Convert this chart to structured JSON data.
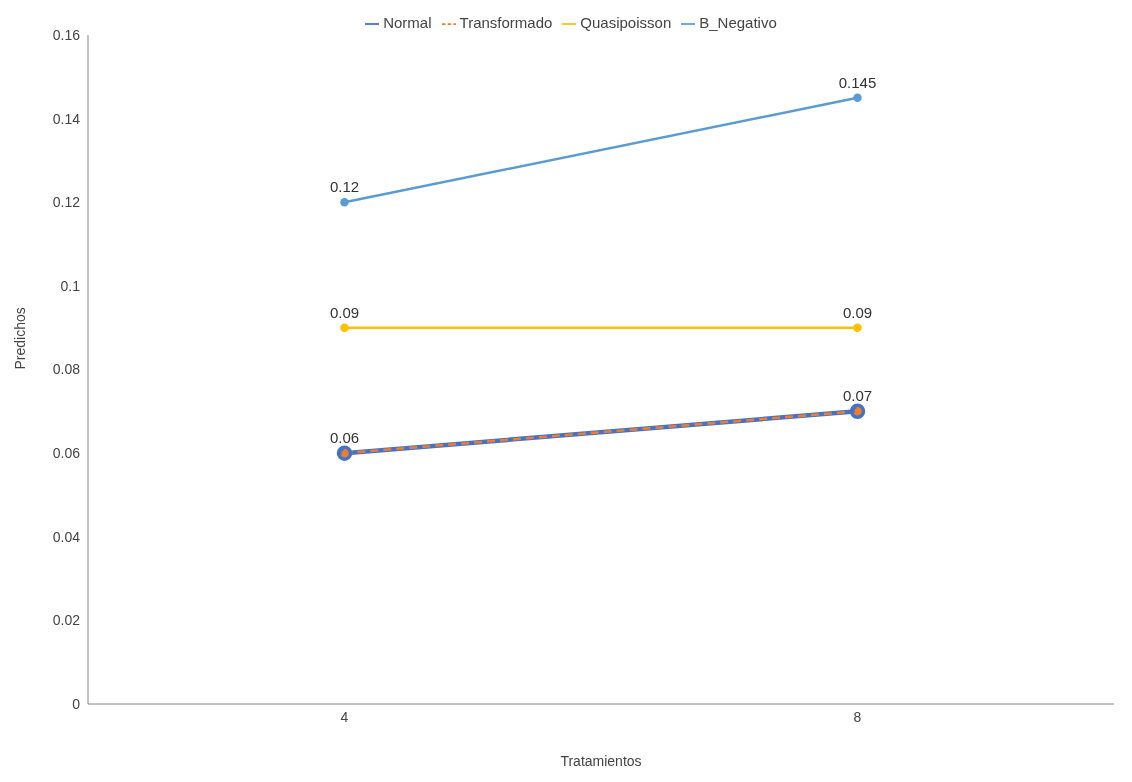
{
  "chart_data": {
    "type": "line",
    "xlabel": "Tratamientos",
    "ylabel": "Predichos",
    "categories": [
      "4",
      "8"
    ],
    "series": [
      {
        "name": "Normal",
        "color": "#4472c4",
        "values": [
          0.06,
          0.07
        ],
        "line_style": "solid",
        "value_labels": [
          null,
          null
        ]
      },
      {
        "name": "Transformado",
        "color": "#ed7d31",
        "values": [
          0.06,
          0.07
        ],
        "line_style": "dashed",
        "value_labels": [
          "0.06",
          "0.07"
        ]
      },
      {
        "name": "Quasipoisson",
        "color": "#ffc000",
        "values": [
          0.09,
          0.09
        ],
        "line_style": "solid",
        "value_labels": [
          "0.09",
          "0.09"
        ]
      },
      {
        "name": "B_Negativo",
        "color": "#5b9bd5",
        "values": [
          0.12,
          0.145
        ],
        "line_style": "solid",
        "value_labels": [
          "0.12",
          "0.145"
        ]
      }
    ],
    "ylim": [
      0,
      0.16
    ],
    "yticks": [
      0,
      0.02,
      0.04,
      0.06,
      0.08,
      0.1,
      0.12,
      0.14,
      0.16
    ],
    "grid": false,
    "legend": "top",
    "marker": "circle"
  }
}
